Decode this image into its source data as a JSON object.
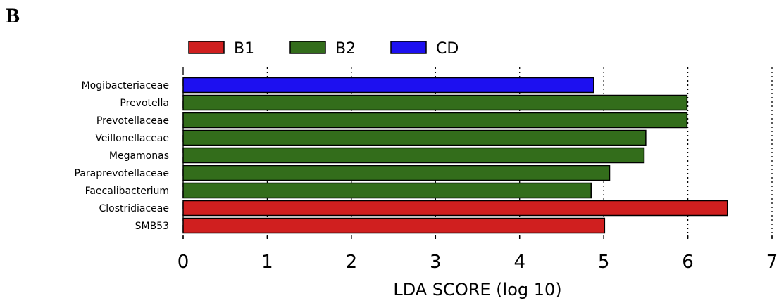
{
  "panel_label": "B",
  "chart_data": {
    "type": "bar",
    "orientation": "horizontal",
    "xlabel": "LDA SCORE (log 10)",
    "xlim": [
      0,
      7
    ],
    "xticks": [
      "0",
      "1",
      "2",
      "3",
      "4",
      "5",
      "6",
      "7"
    ],
    "grid": "vertical dashed lines",
    "legend_position": "top",
    "legend": [
      {
        "name": "B1",
        "color": "#d01f1f"
      },
      {
        "name": "B2",
        "color": "#336d1b"
      },
      {
        "name": "CD",
        "color": "#1d10f0"
      }
    ],
    "bars": [
      {
        "label": "Mogibacteriaceae",
        "value": 4.88,
        "group": "CD"
      },
      {
        "label": "Prevotella",
        "value": 5.99,
        "group": "B2"
      },
      {
        "label": "Prevotellaceae",
        "value": 5.99,
        "group": "B2"
      },
      {
        "label": "Veillonellaceae",
        "value": 5.5,
        "group": "B2"
      },
      {
        "label": "Megamonas",
        "value": 5.48,
        "group": "B2"
      },
      {
        "label": "Paraprevotellaceae",
        "value": 5.07,
        "group": "B2"
      },
      {
        "label": "Faecalibacterium",
        "value": 4.85,
        "group": "B2"
      },
      {
        "label": "Clostridiaceae",
        "value": 6.47,
        "group": "B1"
      },
      {
        "label": "SMB53",
        "value": 5.01,
        "group": "B1"
      }
    ]
  }
}
